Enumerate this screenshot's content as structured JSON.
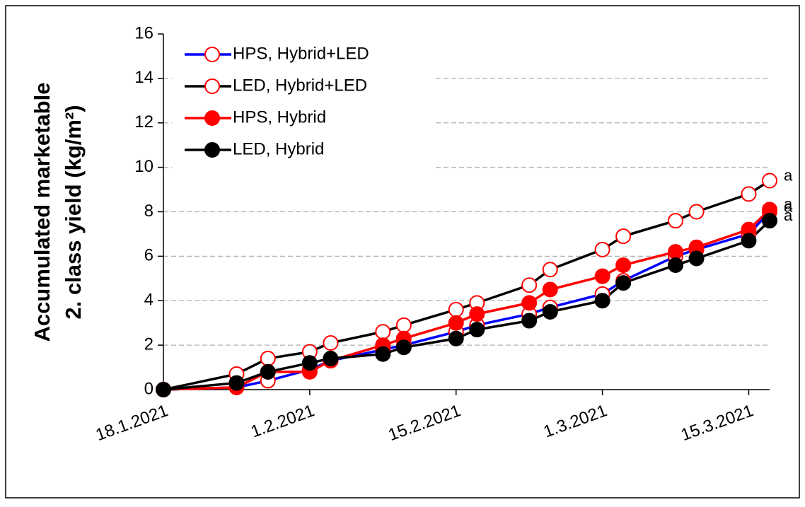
{
  "chart_data": {
    "type": "line",
    "y_label": [
      "Accumulated marketable",
      "2. class yield (kg/m²)"
    ],
    "x": [
      "18.1.2021",
      "25.1.2021",
      "28.1.2021",
      "1.2.2021",
      "3.2.2021",
      "8.2.2021",
      "10.2.2021",
      "15.2.2021",
      "17.2.2021",
      "22.2.2021",
      "24.2.2021",
      "1.3.2021",
      "3.3.2021",
      "8.3.2021",
      "10.3.2021",
      "15.3.2021",
      "17.3.2021"
    ],
    "xlim": [
      "18.1.2021",
      "17.3.2021"
    ],
    "xticks": [
      "18.1.2021",
      "1.2.2021",
      "15.2.2021",
      "1.3.2021",
      "15.3.2021"
    ],
    "ylim": [
      0,
      16
    ],
    "yticks": [
      0,
      2,
      4,
      6,
      8,
      10,
      12,
      14,
      16
    ],
    "grid": true,
    "legend": "top-left",
    "series": [
      {
        "name": "HPS, Hybrid+LED",
        "color": "#0000ff",
        "marker_color": "#ff0000",
        "marker_fill": "open",
        "annotation": "a",
        "values": [
          0,
          0.1,
          0.4,
          0.9,
          1.3,
          1.8,
          2.0,
          2.6,
          2.9,
          3.4,
          3.7,
          4.3,
          4.9,
          6.0,
          6.3,
          7.0,
          8.0
        ]
      },
      {
        "name": "LED, Hybrid+LED",
        "color": "#000000",
        "marker_color": "#ff0000",
        "marker_fill": "open",
        "annotation": "a",
        "values": [
          0,
          0.7,
          1.4,
          1.7,
          2.1,
          2.6,
          2.9,
          3.6,
          3.9,
          4.7,
          5.4,
          6.3,
          6.9,
          7.6,
          8.0,
          8.8,
          9.4
        ]
      },
      {
        "name": "HPS, Hybrid",
        "color": "#ff0000",
        "marker_color": "#ff0000",
        "marker_fill": "filled",
        "annotation": "a",
        "values": [
          0,
          0.1,
          0.8,
          0.8,
          1.3,
          2.0,
          2.3,
          3.0,
          3.4,
          3.9,
          4.5,
          5.1,
          5.6,
          6.2,
          6.4,
          7.2,
          8.1
        ]
      },
      {
        "name": "LED, Hybrid",
        "color": "#000000",
        "marker_color": "#000000",
        "marker_fill": "filled",
        "annotation": "a",
        "values": [
          0,
          0.3,
          0.8,
          1.2,
          1.4,
          1.6,
          1.9,
          2.3,
          2.7,
          3.1,
          3.5,
          4.0,
          4.8,
          5.6,
          5.9,
          6.7,
          7.6
        ]
      }
    ]
  }
}
